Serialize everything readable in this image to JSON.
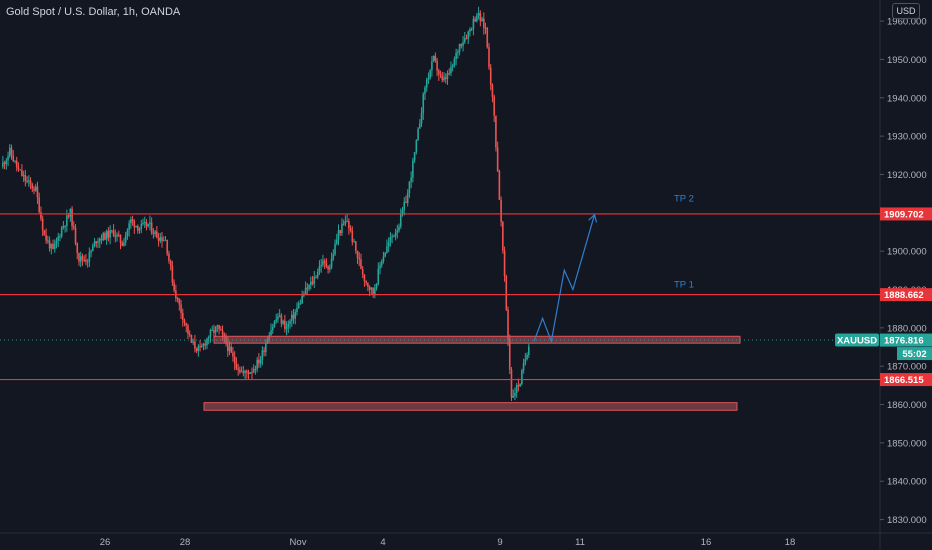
{
  "header": {
    "title": "Gold Spot / U.S. Dollar, 1h, OANDA",
    "currency_button": "USD"
  },
  "colors": {
    "background": "#131722",
    "up": "#26a69a",
    "down": "#ef5350",
    "level_line": "#e8353a",
    "projection": "#2f7fd0",
    "axis_text": "#b2b5be"
  },
  "chart_data": {
    "type": "candlestick",
    "symbol": "XAUUSD",
    "timeframe": "1h",
    "y_axis": {
      "ticks": [
        1830,
        1840,
        1850,
        1860,
        1870,
        1880,
        1890,
        1900,
        1910,
        1920,
        1930,
        1940,
        1950,
        1960
      ],
      "tick_labels": [
        "1830.000",
        "1840.000",
        "1850.000",
        "1860.000",
        "1870.000",
        "1880.000",
        "1890.000",
        "1900.000",
        "1910.000",
        "1920.000",
        "1930.000",
        "1940.000",
        "1950.000",
        "1960.000"
      ],
      "range": [
        1826.5,
        1965.5
      ]
    },
    "x_axis": {
      "tick_labels": [
        "26",
        "28",
        "Nov",
        "4",
        "9",
        "11",
        "16",
        "18"
      ]
    },
    "price_path": [
      [
        0,
        1922
      ],
      [
        1,
        1926
      ],
      [
        2,
        1921
      ],
      [
        3,
        1918
      ],
      [
        4,
        1916
      ],
      [
        5,
        1904
      ],
      [
        6,
        1900
      ],
      [
        7,
        1906
      ],
      [
        8,
        1910
      ],
      [
        9,
        1898
      ],
      [
        10,
        1898
      ],
      [
        11,
        1903
      ],
      [
        12,
        1904
      ],
      [
        13,
        1905
      ],
      [
        14,
        1902
      ],
      [
        15,
        1908
      ],
      [
        16,
        1906
      ],
      [
        17,
        1907
      ],
      [
        18,
        1904
      ],
      [
        19,
        1903
      ],
      [
        20,
        1890
      ],
      [
        21,
        1883
      ],
      [
        22,
        1876
      ],
      [
        23,
        1874
      ],
      [
        24,
        1878
      ],
      [
        25,
        1880
      ],
      [
        26,
        1876
      ],
      [
        27,
        1871
      ],
      [
        28,
        1868
      ],
      [
        29,
        1869
      ],
      [
        30,
        1872
      ],
      [
        31,
        1879
      ],
      [
        32,
        1883
      ],
      [
        33,
        1880
      ],
      [
        34,
        1884
      ],
      [
        35,
        1889
      ],
      [
        36,
        1892
      ],
      [
        37,
        1897
      ],
      [
        38,
        1896
      ],
      [
        39,
        1905
      ],
      [
        40,
        1908
      ],
      [
        41,
        1900
      ],
      [
        42,
        1893
      ],
      [
        43,
        1889
      ],
      [
        44,
        1898
      ],
      [
        45,
        1903
      ],
      [
        46,
        1907
      ],
      [
        47,
        1915
      ],
      [
        48,
        1928
      ],
      [
        49,
        1943
      ],
      [
        50,
        1950
      ],
      [
        51,
        1944
      ],
      [
        52,
        1947
      ],
      [
        53,
        1954
      ],
      [
        54,
        1957
      ],
      [
        55,
        1962
      ],
      [
        56,
        1958
      ],
      [
        57,
        1935
      ],
      [
        58,
        1900
      ],
      [
        59,
        1862
      ],
      [
        60,
        1866
      ],
      [
        61,
        1876
      ]
    ],
    "levels": [
      {
        "price": 1909.702,
        "label": "1909.702"
      },
      {
        "price": 1888.662,
        "label": "1888.662"
      },
      {
        "price": 1866.515,
        "label": "1866.515"
      }
    ],
    "zones": [
      {
        "low": 1876.0,
        "high": 1877.8
      },
      {
        "low": 1858.5,
        "high": 1860.5
      }
    ],
    "projection_path": [
      [
        61.5,
        1876.5
      ],
      [
        62.5,
        1882.5
      ],
      [
        63.5,
        1876.5
      ],
      [
        65,
        1895
      ],
      [
        66,
        1890
      ],
      [
        68.5,
        1909.5
      ]
    ],
    "annotations": [
      {
        "text": "TP 2",
        "price": 1913
      },
      {
        "text": "TP 1",
        "price": 1890.5
      }
    ],
    "current_price": {
      "symbol_label": "XAUUSD",
      "price_label": "1876.816",
      "price": 1876.816,
      "countdown": "55:02"
    }
  }
}
